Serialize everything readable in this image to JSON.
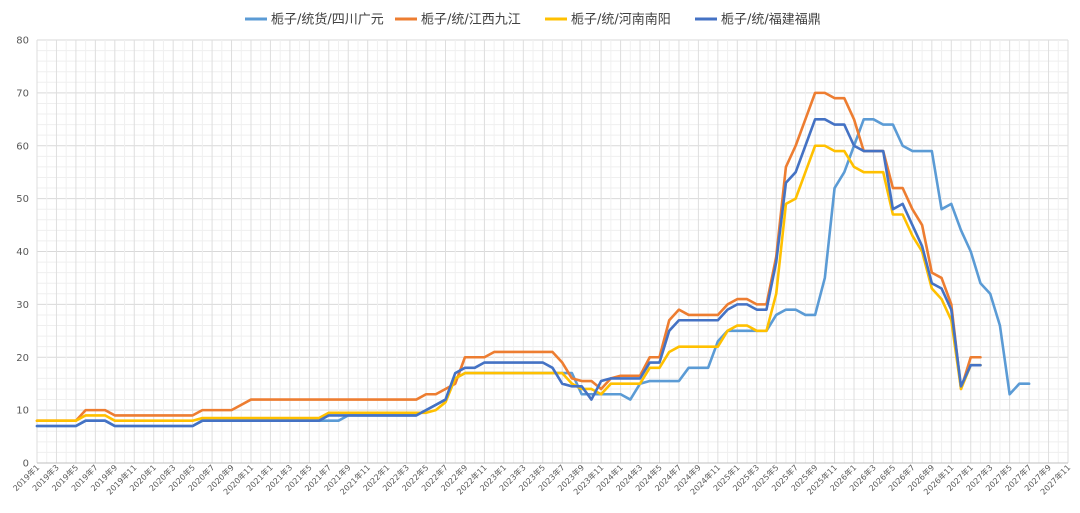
{
  "chart_data": {
    "type": "line",
    "ylim": [
      0,
      80
    ],
    "yticks": [
      0,
      10,
      20,
      30,
      40,
      50,
      60,
      70,
      80
    ],
    "grid": true,
    "legend_position": "top",
    "x_tick_labels": [
      "2019年1",
      "2019年3",
      "2019年5",
      "2019年7",
      "2019年9",
      "2019年11",
      "2020年1",
      "2020年3",
      "2020年5",
      "2020年7",
      "2020年9",
      "2020年11",
      "2021年1",
      "2021年3",
      "2021年5",
      "2021年7",
      "2021年9",
      "2021年11",
      "2022年1",
      "2022年3",
      "2022年5",
      "2022年7",
      "2022年9",
      "2022年11",
      "2023年1",
      "2023年3",
      "2023年5",
      "2023年7",
      "2023年9",
      "2023年11",
      "2024年1",
      "2024年3",
      "2024年5",
      "2024年7",
      "2024年9",
      "2024年11",
      "2025年1",
      "2025年3",
      "2025年5",
      "2025年7",
      "2025年9",
      "2025年11",
      "2026年1",
      "2026年3",
      "2026年5",
      "2026年7",
      "2026年9",
      "2026年11",
      "2027年1",
      "2027年3",
      "2027年5",
      "2027年7",
      "2027年9",
      "2027年11"
    ],
    "series": [
      {
        "name": "栀子/统货/四川广元",
        "color": "#5B9BD5",
        "values": [
          7,
          7,
          7,
          7,
          7,
          8,
          8,
          8,
          7,
          7,
          7,
          7,
          7,
          7,
          7,
          7,
          7,
          8,
          8,
          8,
          8,
          8,
          8,
          8,
          8,
          8,
          8,
          8,
          8,
          8,
          8,
          8,
          9,
          9,
          9,
          9,
          9,
          9,
          9,
          9,
          10,
          11,
          12,
          16,
          17,
          17,
          17,
          17,
          17,
          17,
          17,
          17,
          17,
          17,
          17,
          17,
          13,
          13,
          13,
          13,
          13,
          12,
          15,
          15.5,
          15.5,
          15.5,
          15.5,
          18,
          18,
          18,
          23,
          25,
          25,
          25,
          25,
          25,
          28,
          29,
          29,
          28,
          28,
          35,
          52,
          55,
          60,
          65,
          65,
          64,
          64,
          60,
          59,
          59,
          59,
          48,
          49,
          44,
          40,
          34,
          32,
          26,
          13,
          15,
          15
        ]
      },
      {
        "name": "栀子/统/江西九江",
        "color": "#ED7D31",
        "values": [
          8,
          8,
          8,
          8,
          8,
          10,
          10,
          10,
          9,
          9,
          9,
          9,
          9,
          9,
          9,
          9,
          9,
          10,
          10,
          10,
          10,
          11,
          12,
          12,
          12,
          12,
          12,
          12,
          12,
          12,
          12,
          12,
          12,
          12,
          12,
          12,
          12,
          12,
          12,
          12,
          13,
          13,
          14,
          15,
          20,
          20,
          20,
          21,
          21,
          21,
          21,
          21,
          21,
          21,
          19,
          16,
          15.5,
          15.5,
          14,
          16,
          16.5,
          16.5,
          16.5,
          20,
          20,
          27,
          29,
          28,
          28,
          28,
          28,
          30,
          31,
          31,
          30,
          30,
          39,
          56,
          60,
          65,
          70,
          70,
          69,
          69,
          65,
          59,
          59,
          59,
          52,
          52,
          48,
          45,
          36,
          35,
          30,
          14,
          20,
          20
        ]
      },
      {
        "name": "栀子/统/河南南阳",
        "color": "#FFC000",
        "values": [
          8,
          8,
          8,
          8,
          8,
          9,
          9,
          9,
          8,
          8,
          8,
          8,
          8,
          8,
          8,
          8,
          8,
          8.5,
          8.5,
          8.5,
          8.5,
          8.5,
          8.5,
          8.5,
          8.5,
          8.5,
          8.5,
          8.5,
          8.5,
          8.5,
          9.5,
          9.5,
          9.5,
          9.5,
          9.5,
          9.5,
          9.5,
          9.5,
          9.5,
          9.5,
          9.5,
          10,
          11.5,
          16,
          17,
          17,
          17,
          17,
          17,
          17,
          17,
          17,
          17,
          17,
          17,
          15,
          14,
          14,
          13,
          15,
          15,
          15,
          15,
          18,
          18,
          21,
          22,
          22,
          22,
          22,
          22,
          25,
          26,
          26,
          25,
          25,
          32,
          49,
          50,
          55,
          60,
          60,
          59,
          59,
          56,
          55,
          55,
          55,
          47,
          47,
          43,
          40,
          33,
          31,
          27,
          14,
          18.5,
          18.5
        ]
      },
      {
        "name": "栀子/统/福建福鼎",
        "color": "#4472C4",
        "values": [
          7,
          7,
          7,
          7,
          7,
          8,
          8,
          8,
          7,
          7,
          7,
          7,
          7,
          7,
          7,
          7,
          7,
          8,
          8,
          8,
          8,
          8,
          8,
          8,
          8,
          8,
          8,
          8,
          8,
          8,
          9,
          9,
          9,
          9,
          9,
          9,
          9,
          9,
          9,
          9,
          10,
          11,
          12,
          17,
          18,
          18,
          19,
          19,
          19,
          19,
          19,
          19,
          19,
          18,
          15,
          14.5,
          14.5,
          12,
          15.5,
          16,
          16,
          16,
          16,
          19,
          19,
          25,
          27,
          27,
          27,
          27,
          27,
          29,
          30,
          30,
          29,
          29,
          38,
          53,
          55,
          60,
          65,
          65,
          64,
          64,
          60,
          59,
          59,
          59,
          48,
          49,
          45,
          41,
          34,
          33,
          29,
          14.5,
          18.5,
          18.5
        ]
      }
    ]
  }
}
